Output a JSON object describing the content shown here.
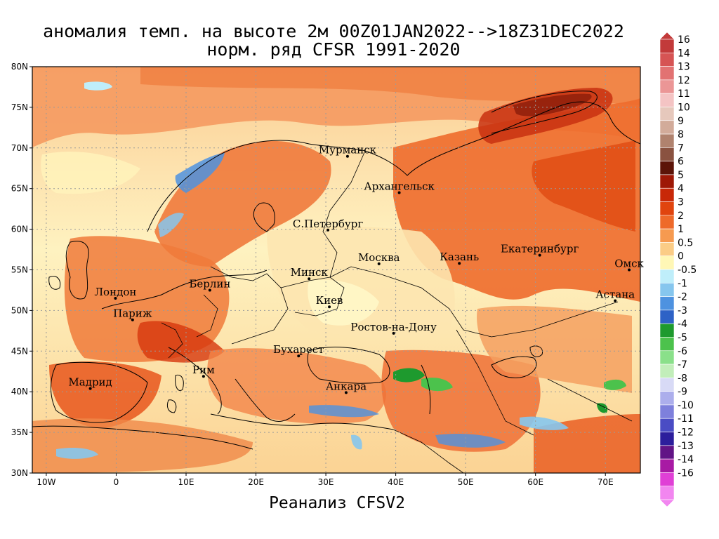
{
  "title_line1": "аномалия темп. на высоте 2м 00Z01JAN2022-->18Z31DEC2022",
  "title_line2": "норм. ряд CFSR 1991-2020",
  "footer": "Реанализ CFSV2",
  "map": {
    "lon_range": [
      -12,
      75
    ],
    "lat_range": [
      30,
      80
    ],
    "lat_ticks": [
      {
        "v": 80,
        "label": "80N"
      },
      {
        "v": 75,
        "label": "75N"
      },
      {
        "v": 70,
        "label": "70N"
      },
      {
        "v": 65,
        "label": "65N"
      },
      {
        "v": 60,
        "label": "60N"
      },
      {
        "v": 55,
        "label": "55N"
      },
      {
        "v": 50,
        "label": "50N"
      },
      {
        "v": 45,
        "label": "45N"
      },
      {
        "v": 40,
        "label": "40N"
      },
      {
        "v": 35,
        "label": "35N"
      },
      {
        "v": 30,
        "label": "30N"
      }
    ],
    "lon_ticks": [
      {
        "v": -10,
        "label": "10W"
      },
      {
        "v": 0,
        "label": "0"
      },
      {
        "v": 10,
        "label": "10E"
      },
      {
        "v": 20,
        "label": "20E"
      },
      {
        "v": 30,
        "label": "30E"
      },
      {
        "v": 40,
        "label": "40E"
      },
      {
        "v": 50,
        "label": "50E"
      },
      {
        "v": 60,
        "label": "60E"
      },
      {
        "v": 70,
        "label": "70E"
      }
    ],
    "cities": [
      {
        "name": "Мурманск",
        "lon": 33.1,
        "lat": 68.97
      },
      {
        "name": "Архангельск",
        "lon": 40.5,
        "lat": 64.5
      },
      {
        "name": "С.Петербург",
        "lon": 30.3,
        "lat": 59.9
      },
      {
        "name": "Москва",
        "lon": 37.6,
        "lat": 55.75
      },
      {
        "name": "Казань",
        "lon": 49.1,
        "lat": 55.8
      },
      {
        "name": "Екатеринбург",
        "lon": 60.6,
        "lat": 56.8
      },
      {
        "name": "Омск",
        "lon": 73.4,
        "lat": 55.0
      },
      {
        "name": "Астана",
        "lon": 71.4,
        "lat": 51.2
      },
      {
        "name": "Минск",
        "lon": 27.6,
        "lat": 53.9
      },
      {
        "name": "Киев",
        "lon": 30.5,
        "lat": 50.45
      },
      {
        "name": "Берлин",
        "lon": 13.4,
        "lat": 52.5
      },
      {
        "name": "Лондон",
        "lon": -0.1,
        "lat": 51.5
      },
      {
        "name": "Париж",
        "lon": 2.35,
        "lat": 48.85
      },
      {
        "name": "Ростов-на-Дону",
        "lon": 39.7,
        "lat": 47.2
      },
      {
        "name": "Бухарест",
        "lon": 26.1,
        "lat": 44.4
      },
      {
        "name": "Рим",
        "lon": 12.5,
        "lat": 41.9
      },
      {
        "name": "Мадрид",
        "lon": -3.7,
        "lat": 40.4
      },
      {
        "name": "Анкара",
        "lon": 32.9,
        "lat": 39.9
      }
    ]
  },
  "colorbar": {
    "levels": [
      {
        "label": "16",
        "color": "#c23a3a"
      },
      {
        "label": "14",
        "color": "#d65454"
      },
      {
        "label": "13",
        "color": "#e27272"
      },
      {
        "label": "12",
        "color": "#eb9696"
      },
      {
        "label": "11",
        "color": "#f4c4c4"
      },
      {
        "label": "10",
        "color": "#e6c8bc"
      },
      {
        "label": "9",
        "color": "#d2ab9a"
      },
      {
        "label": "8",
        "color": "#b0826e"
      },
      {
        "label": "7",
        "color": "#8a5240"
      },
      {
        "label": "6",
        "color": "#5c1408"
      },
      {
        "label": "5",
        "color": "#9e1806"
      },
      {
        "label": "4",
        "color": "#c82808"
      },
      {
        "label": "3",
        "color": "#e0440e"
      },
      {
        "label": "2",
        "color": "#ee6a2a"
      },
      {
        "label": "1",
        "color": "#f69a50"
      },
      {
        "label": "0.5",
        "color": "#fbcc86"
      },
      {
        "label": "0",
        "color": "#fff7b6"
      },
      {
        "label": "-0.5",
        "color": "#bfeefa"
      },
      {
        "label": "-1",
        "color": "#86c6ee"
      },
      {
        "label": "-2",
        "color": "#4e92e0"
      },
      {
        "label": "-3",
        "color": "#2e62c6"
      },
      {
        "label": "-4",
        "color": "#1e9a2e"
      },
      {
        "label": "-5",
        "color": "#4cc24c"
      },
      {
        "label": "-6",
        "color": "#8ae08a"
      },
      {
        "label": "-7",
        "color": "#c2eeba"
      },
      {
        "label": "-8",
        "color": "#d8daf6"
      },
      {
        "label": "-9",
        "color": "#acaeec"
      },
      {
        "label": "-10",
        "color": "#7e80dc"
      },
      {
        "label": "-11",
        "color": "#4a4cc4"
      },
      {
        "label": "-12",
        "color": "#2c1e9c"
      },
      {
        "label": "-13",
        "color": "#621486"
      },
      {
        "label": "-14",
        "color": "#a81aa4"
      },
      {
        "label": "-16",
        "color": "#e040d6"
      }
    ],
    "below_color": "#f286f0"
  }
}
